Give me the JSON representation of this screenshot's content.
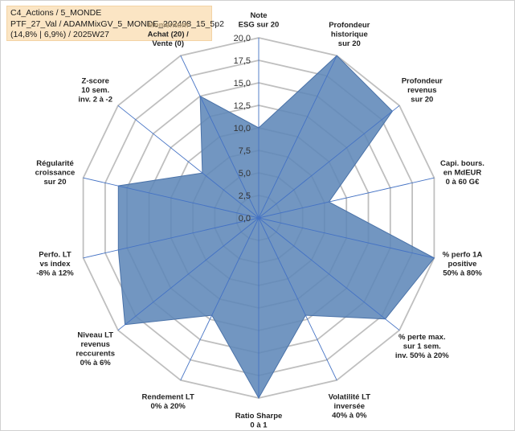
{
  "title_box": {
    "line1": "C4_Actions / 5_MONDE",
    "line2": "PTF_27_Val / ADAMMixGV_5_MONDE_202408_15_5p2",
    "line3": "(14,8% | 6,9%) / 2025W27"
  },
  "chart_data": {
    "type": "radar",
    "rmin": 0,
    "rmax": 20,
    "tick_values": [
      0,
      2.5,
      5,
      7.5,
      10,
      12.5,
      15,
      17.5,
      20
    ],
    "tick_labels": [
      "0,0",
      "2,5",
      "5,0",
      "7,5",
      "10,0",
      "12,5",
      "15,0",
      "17,5",
      "20,0"
    ],
    "axes": [
      {
        "label": [
          "Note",
          "ESG sur 20"
        ],
        "value": 10
      },
      {
        "label": [
          "Profondeur",
          "historique",
          "sur 20"
        ],
        "value": 20
      },
      {
        "label": [
          "Profondeur",
          "revenus",
          "sur 20"
        ],
        "value": 19
      },
      {
        "label": [
          "Capi. bours.",
          "en MdEUR",
          "0 à 60 G€"
        ],
        "value": 8
      },
      {
        "label": [
          "% perfo 1A",
          "positive",
          "50% à 80%"
        ],
        "value": 20
      },
      {
        "label": [
          "% perte max.",
          "sur 1 sem.",
          "inv. 50% à 20%"
        ],
        "value": 18
      },
      {
        "label": [
          "Volatilité LT",
          "inversée",
          "40% à 0%"
        ],
        "value": 12
      },
      {
        "label": [
          "Ratio Sharpe",
          "0 à 1"
        ],
        "value": 20
      },
      {
        "label": [
          "Rendement LT",
          "0% à 20%"
        ],
        "value": 12
      },
      {
        "label": [
          "Niveau LT",
          "revenus",
          "reccurents",
          "0% à 6%"
        ],
        "value": 19
      },
      {
        "label": [
          "Perfo. LT",
          "vs index",
          "-8% à 12%"
        ],
        "value": 16
      },
      {
        "label": [
          "Régularité",
          "croissance",
          "sur 20"
        ],
        "value": 16
      },
      {
        "label": [
          "Z-score",
          "10 sem.",
          "inv. 2 à -2"
        ],
        "value": 8
      },
      {
        "label": [
          "Momentum",
          "Achat (20) /",
          "Vente (0)"
        ],
        "value": 15
      }
    ],
    "colors": {
      "fill": "#5f87b8",
      "stroke": "#4a72a8",
      "grid": "#bfbfbf",
      "spoke": "#4472c4",
      "title_bg": "#fbe5c4"
    }
  }
}
